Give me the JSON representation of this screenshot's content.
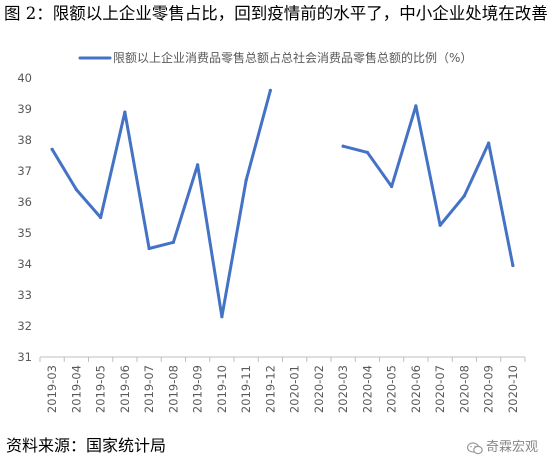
{
  "figure": {
    "title": "图 2：限额以上企业零售占比，回到疫情前的水平了，中小企业处境在改善",
    "source": "资料来源：国家统计局",
    "watermark": "奇霖宏观"
  },
  "colors": {
    "line": "#4472C4",
    "axis": "#BFBFBF",
    "tick_text": "#595959"
  },
  "chart_data": {
    "type": "line",
    "title": "",
    "xlabel": "",
    "ylabel": "",
    "ylim": [
      31,
      40
    ],
    "yticks": [
      31,
      32,
      33,
      34,
      35,
      36,
      37,
      38,
      39,
      40
    ],
    "grid": false,
    "legend_position": "top-center",
    "categories": [
      "2019-03",
      "2019-04",
      "2019-05",
      "2019-06",
      "2019-07",
      "2019-08",
      "2019-09",
      "2019-10",
      "2019-11",
      "2019-12",
      "2020-01",
      "2020-02",
      "2020-03",
      "2020-04",
      "2020-05",
      "2020-06",
      "2020-07",
      "2020-08",
      "2020-09",
      "2020-10"
    ],
    "series": [
      {
        "name": "限额以上企业消费品零售总额占总社会消费品零售总额的比例（%）",
        "values": [
          37.7,
          36.4,
          35.5,
          38.9,
          34.5,
          34.7,
          37.2,
          32.3,
          36.7,
          39.6,
          null,
          null,
          37.8,
          37.6,
          36.5,
          39.1,
          35.25,
          36.2,
          37.9,
          33.95
        ]
      }
    ]
  }
}
